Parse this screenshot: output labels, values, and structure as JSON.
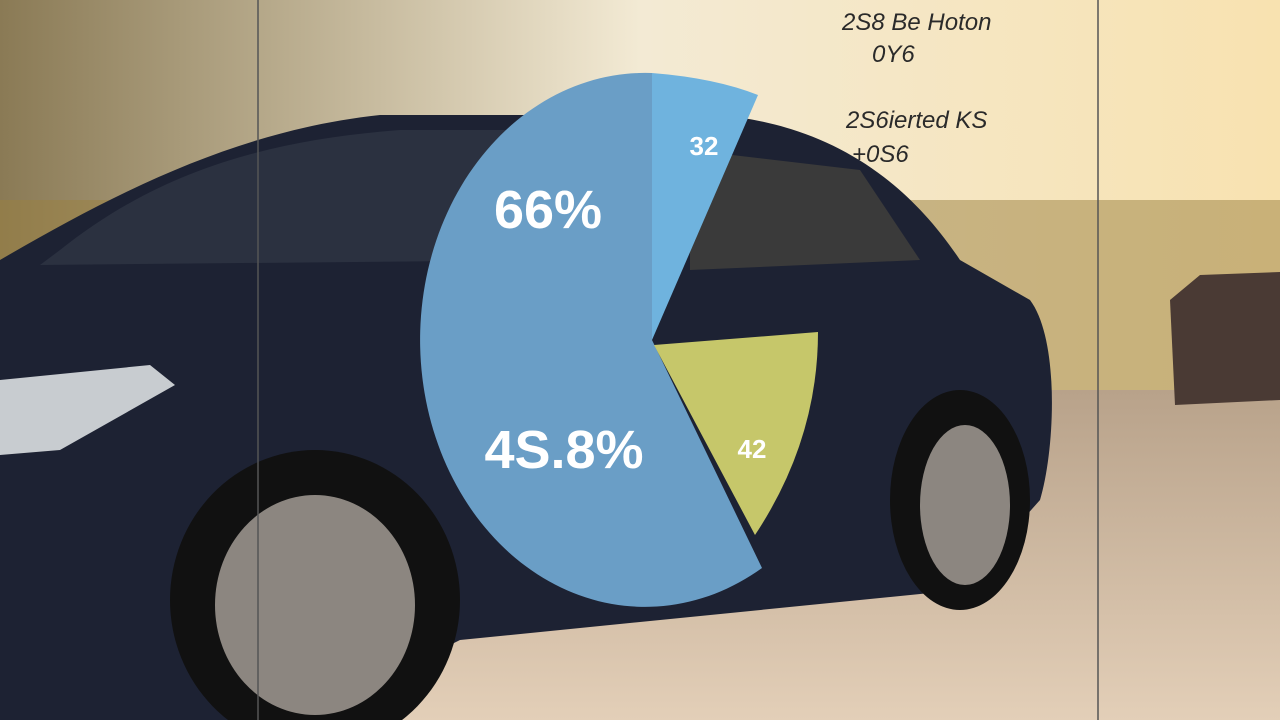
{
  "overlay": {
    "labels": [
      "2S8 Be Hoton",
      "0Y6",
      "2S6ierted KS",
      "+0S6"
    ],
    "pie_labels": [
      "66%",
      "4S.8%",
      "32",
      "42"
    ]
  }
}
